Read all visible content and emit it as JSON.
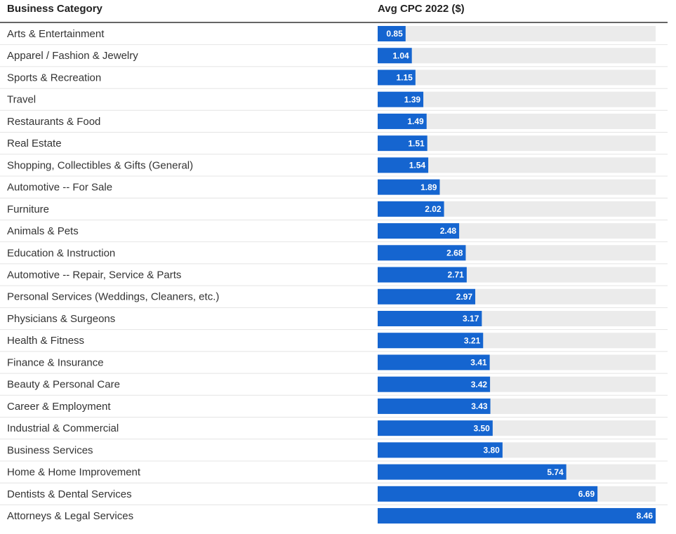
{
  "chart_data": {
    "type": "bar",
    "orientation": "horizontal",
    "headers": [
      "Business Category",
      "Avg CPC 2022 ($)"
    ],
    "color": "#1565d0",
    "track_color": "#ebebeb",
    "xlim": [
      0,
      8.46
    ],
    "categories": [
      "Arts & Entertainment",
      "Apparel / Fashion & Jewelry",
      "Sports & Recreation",
      "Travel",
      "Restaurants & Food",
      "Real Estate",
      "Shopping, Collectibles & Gifts (General)",
      "Automotive -- For Sale",
      "Furniture",
      "Animals & Pets",
      "Education & Instruction",
      "Automotive -- Repair, Service & Parts",
      "Personal Services (Weddings, Cleaners, etc.)",
      "Physicians & Surgeons",
      "Health & Fitness",
      "Finance & Insurance",
      "Beauty & Personal Care",
      "Career & Employment",
      "Industrial & Commercial",
      "Business Services",
      "Home & Home Improvement",
      "Dentists & Dental Services",
      "Attorneys & Legal Services"
    ],
    "values": [
      0.85,
      1.04,
      1.15,
      1.39,
      1.49,
      1.51,
      1.54,
      1.89,
      2.02,
      2.48,
      2.68,
      2.71,
      2.97,
      3.17,
      3.21,
      3.41,
      3.42,
      3.43,
      3.5,
      3.8,
      5.74,
      6.69,
      8.46
    ],
    "value_labels": [
      "0.85",
      "1.04",
      "1.15",
      "1.39",
      "1.49",
      "1.51",
      "1.54",
      "1.89",
      "2.02",
      "2.48",
      "2.68",
      "2.71",
      "2.97",
      "3.17",
      "3.21",
      "3.41",
      "3.42",
      "3.43",
      "3.50",
      "3.80",
      "5.74",
      "6.69",
      "8.46"
    ]
  }
}
